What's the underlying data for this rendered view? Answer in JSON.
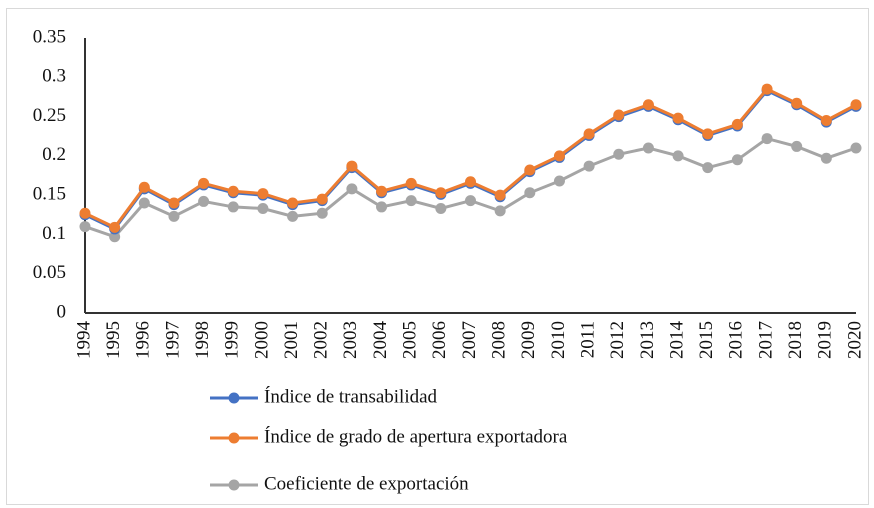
{
  "chart_data": {
    "type": "line",
    "categories": [
      "1994",
      "1995",
      "1996",
      "1997",
      "1998",
      "1999",
      "2000",
      "2001",
      "2002",
      "2003",
      "2004",
      "2005",
      "2006",
      "2007",
      "2008",
      "2009",
      "2010",
      "2011",
      "2012",
      "2013",
      "2014",
      "2015",
      "2016",
      "2017",
      "2018",
      "2019",
      "2020"
    ],
    "series": [
      {
        "name": "Índice de transabilidad",
        "color": "#4472c4",
        "values": [
          0.125,
          0.107,
          0.158,
          0.138,
          0.163,
          0.153,
          0.15,
          0.138,
          0.143,
          0.185,
          0.153,
          0.163,
          0.151,
          0.165,
          0.148,
          0.18,
          0.198,
          0.226,
          0.25,
          0.263,
          0.246,
          0.226,
          0.238,
          0.283,
          0.265,
          0.243,
          0.263
        ]
      },
      {
        "name": "Índice de grado de apertura exportadora",
        "color": "#ed7d31",
        "values": [
          0.127,
          0.109,
          0.16,
          0.14,
          0.165,
          0.155,
          0.152,
          0.14,
          0.145,
          0.187,
          0.155,
          0.165,
          0.153,
          0.167,
          0.15,
          0.182,
          0.2,
          0.228,
          0.252,
          0.265,
          0.248,
          0.228,
          0.24,
          0.285,
          0.267,
          0.245,
          0.265
        ]
      },
      {
        "name": "Coeficiente de exportación",
        "color": "#a5a5a5",
        "values": [
          0.11,
          0.097,
          0.14,
          0.123,
          0.142,
          0.135,
          0.133,
          0.123,
          0.127,
          0.158,
          0.135,
          0.143,
          0.133,
          0.143,
          0.13,
          0.153,
          0.168,
          0.187,
          0.202,
          0.21,
          0.2,
          0.185,
          0.195,
          0.222,
          0.212,
          0.197,
          0.21
        ]
      }
    ],
    "ylim": [
      0,
      0.35
    ],
    "yticks": [
      0,
      0.05,
      0.1,
      0.15,
      0.2,
      0.25,
      0.3,
      0.35
    ],
    "grid": false
  }
}
